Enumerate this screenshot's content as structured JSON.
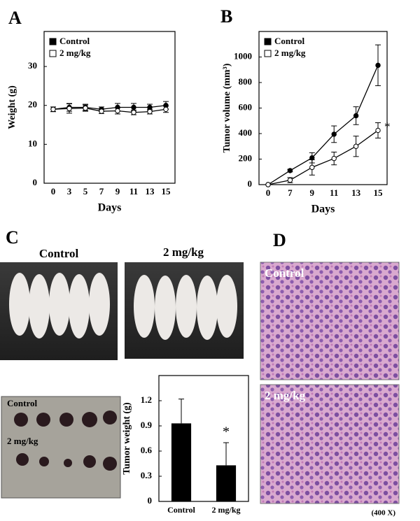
{
  "panel_letters": [
    "A",
    "B",
    "C",
    "D"
  ],
  "chart_data": [
    {
      "type": "line",
      "xlabel": "Days",
      "ylabel": "Weight (g)",
      "categories": [
        "0",
        "3",
        "5",
        "7",
        "9",
        "11",
        "13",
        "15"
      ],
      "ylim": [
        0,
        39
      ],
      "yticks": [
        0,
        10,
        20,
        30
      ],
      "series": [
        {
          "name": "Control",
          "color": "#000000",
          "marker_fill": "#000000",
          "values": [
            19,
            19.5,
            19.5,
            19,
            19.5,
            19.5,
            19.5,
            20
          ],
          "errors": [
            0.6,
            1,
            0.8,
            0.6,
            1,
            1,
            0.8,
            1
          ]
        },
        {
          "name": "2 mg/kg",
          "color": "#000000",
          "marker_fill": "#ffffff",
          "values": [
            19,
            19.2,
            19.3,
            18.5,
            18.6,
            18.2,
            18.4,
            19
          ],
          "errors": [
            0.6,
            1.2,
            0.8,
            0.6,
            0.8,
            0.6,
            0.6,
            0.8
          ]
        }
      ]
    },
    {
      "type": "line",
      "xlabel": "Days",
      "ylabel": "Tumor volume (mm³)",
      "categories": [
        "0",
        "7",
        "9",
        "11",
        "13",
        "15"
      ],
      "ylim": [
        0,
        1200
      ],
      "yticks": [
        0,
        200,
        400,
        600,
        800,
        1000
      ],
      "annotation": "*",
      "series": [
        {
          "name": "Control",
          "color": "#000000",
          "marker_fill": "#000000",
          "values": [
            0,
            110,
            210,
            395,
            540,
            935
          ],
          "errors": [
            0,
            10,
            40,
            65,
            70,
            160
          ]
        },
        {
          "name": "2 mg/kg",
          "color": "#000000",
          "marker_fill": "#ffffff",
          "values": [
            0,
            35,
            135,
            205,
            300,
            425
          ],
          "errors": [
            0,
            20,
            60,
            50,
            80,
            60
          ]
        }
      ]
    },
    {
      "type": "bar",
      "ylabel": "Tumor weight (g)",
      "categories": [
        "Control",
        "2 mg/kg"
      ],
      "values": [
        0.93,
        0.43
      ],
      "errors": [
        0.29,
        0.27
      ],
      "color": "#000000",
      "ylim": [
        0,
        1.5
      ],
      "yticks": [
        0,
        0.3,
        0.6,
        0.9,
        1.2
      ],
      "annotation": "*"
    }
  ],
  "photos": {
    "mice_labels": [
      "Control",
      "2 mg/kg"
    ],
    "tumor_labels": [
      "Control",
      "2 mg/kg"
    ],
    "histology_labels": [
      "Control",
      "2 mg/kg"
    ],
    "magnification": "(400 X)"
  }
}
